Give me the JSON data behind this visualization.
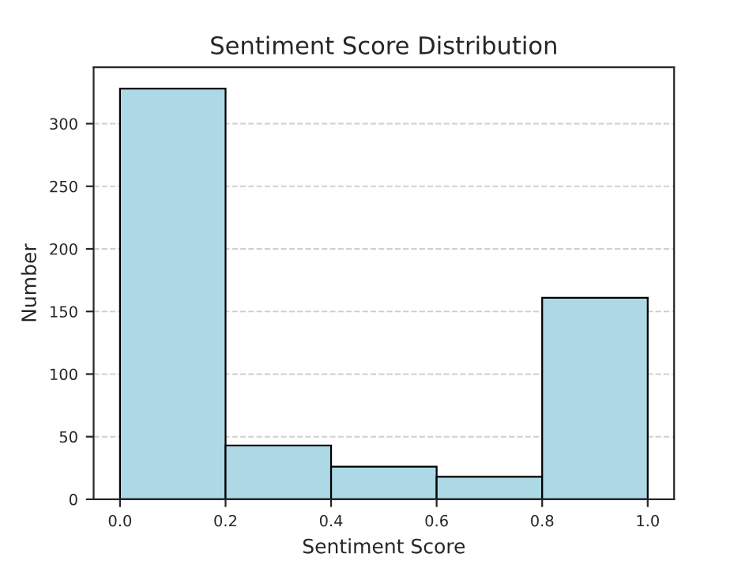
{
  "chart_data": {
    "type": "histogram",
    "title": "Sentiment Score Distribution",
    "xlabel": "Sentiment Score",
    "ylabel": "Number",
    "bins": [
      0.0,
      0.2,
      0.4,
      0.6,
      0.8,
      1.0
    ],
    "values": [
      328,
      43,
      26,
      18,
      161
    ],
    "color": "#add8e6",
    "xlim": [
      -0.05,
      1.05
    ],
    "ylim": [
      0,
      345
    ],
    "xticks": [
      {
        "value": 0.0,
        "label": "0.0"
      },
      {
        "value": 0.2,
        "label": "0.2"
      },
      {
        "value": 0.4,
        "label": "0.4"
      },
      {
        "value": 0.6,
        "label": "0.6"
      },
      {
        "value": 0.8,
        "label": "0.8"
      },
      {
        "value": 1.0,
        "label": "1.0"
      }
    ],
    "yticks": [
      0,
      50,
      100,
      150,
      200,
      250,
      300
    ],
    "grid": "y"
  }
}
